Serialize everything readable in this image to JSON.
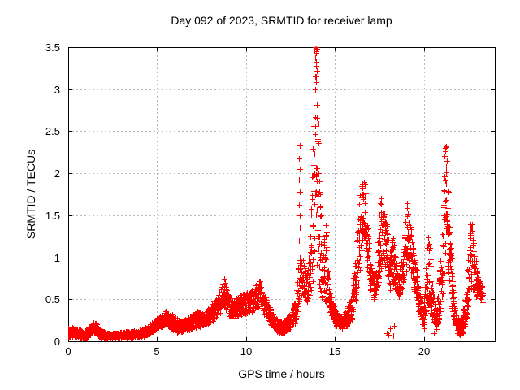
{
  "chart_data": {
    "type": "scatter",
    "title": "Day 092 of 2023, SRMTID for receiver lamp",
    "xlabel": "GPS time / hours",
    "ylabel": "SRMTID / TECUs",
    "xlim": [
      0,
      24
    ],
    "ylim": [
      0,
      3.5
    ],
    "xticks": [
      0,
      5,
      10,
      15,
      20
    ],
    "yticks": [
      0,
      0.5,
      1,
      1.5,
      2,
      2.5,
      3,
      3.5
    ],
    "grid": true,
    "legend": "none",
    "marker": "plus",
    "colors": {
      "points": "#ff0000",
      "grid": "#b9b9b9",
      "frame": "#000000",
      "text": "#000000",
      "background": "#ffffff"
    },
    "envelope": [
      [
        0.0,
        0.04,
        0.17
      ],
      [
        0.3,
        0.05,
        0.16
      ],
      [
        0.6,
        0.04,
        0.14
      ],
      [
        0.9,
        0.03,
        0.12
      ],
      [
        1.2,
        0.06,
        0.18
      ],
      [
        1.4,
        0.1,
        0.24
      ],
      [
        1.6,
        0.08,
        0.2
      ],
      [
        1.8,
        0.04,
        0.14
      ],
      [
        2.1,
        0.03,
        0.11
      ],
      [
        2.4,
        0.03,
        0.1
      ],
      [
        2.7,
        0.03,
        0.1
      ],
      [
        3.0,
        0.04,
        0.11
      ],
      [
        3.3,
        0.04,
        0.12
      ],
      [
        3.6,
        0.04,
        0.12
      ],
      [
        3.9,
        0.05,
        0.13
      ],
      [
        4.2,
        0.06,
        0.15
      ],
      [
        4.5,
        0.08,
        0.18
      ],
      [
        4.8,
        0.12,
        0.24
      ],
      [
        5.0,
        0.14,
        0.28
      ],
      [
        5.3,
        0.16,
        0.33
      ],
      [
        5.5,
        0.18,
        0.38
      ],
      [
        5.8,
        0.14,
        0.33
      ],
      [
        6.1,
        0.11,
        0.28
      ],
      [
        6.4,
        0.1,
        0.24
      ],
      [
        6.7,
        0.12,
        0.27
      ],
      [
        7.0,
        0.15,
        0.32
      ],
      [
        7.3,
        0.18,
        0.37
      ],
      [
        7.6,
        0.16,
        0.33
      ],
      [
        7.9,
        0.2,
        0.4
      ],
      [
        8.2,
        0.26,
        0.5
      ],
      [
        8.5,
        0.32,
        0.57
      ],
      [
        8.75,
        0.38,
        0.74
      ],
      [
        8.9,
        0.34,
        0.62
      ],
      [
        9.1,
        0.28,
        0.52
      ],
      [
        9.4,
        0.28,
        0.5
      ],
      [
        9.7,
        0.3,
        0.56
      ],
      [
        10.0,
        0.32,
        0.58
      ],
      [
        10.3,
        0.34,
        0.6
      ],
      [
        10.6,
        0.4,
        0.68
      ],
      [
        10.8,
        0.42,
        0.73
      ],
      [
        11.0,
        0.34,
        0.58
      ],
      [
        11.3,
        0.22,
        0.42
      ],
      [
        11.6,
        0.13,
        0.3
      ],
      [
        11.9,
        0.09,
        0.24
      ],
      [
        12.2,
        0.1,
        0.26
      ],
      [
        12.5,
        0.14,
        0.33
      ],
      [
        12.8,
        0.22,
        0.5
      ],
      [
        13.0,
        0.5,
        1.05
      ],
      [
        13.2,
        0.55,
        1.0
      ],
      [
        13.4,
        0.45,
        0.78
      ],
      [
        13.6,
        0.55,
        1.1
      ],
      [
        13.75,
        0.65,
        2.2
      ],
      [
        13.9,
        0.8,
        3.5
      ],
      [
        14.0,
        0.85,
        3.5
      ],
      [
        14.1,
        0.65,
        2.0
      ],
      [
        14.25,
        0.5,
        1.0
      ],
      [
        14.5,
        0.45,
        1.42
      ],
      [
        14.7,
        0.35,
        0.62
      ],
      [
        14.9,
        0.25,
        0.45
      ],
      [
        15.1,
        0.17,
        0.33
      ],
      [
        15.4,
        0.15,
        0.3
      ],
      [
        15.7,
        0.18,
        0.38
      ],
      [
        16.0,
        0.28,
        0.65
      ],
      [
        16.2,
        0.45,
        1.05
      ],
      [
        16.4,
        0.75,
        1.75
      ],
      [
        16.55,
        1.15,
        1.97
      ],
      [
        16.7,
        1.25,
        1.9
      ],
      [
        16.85,
        0.85,
        1.45
      ],
      [
        17.0,
        0.55,
        0.9
      ],
      [
        17.2,
        0.5,
        0.78
      ],
      [
        17.4,
        0.6,
        1.1
      ],
      [
        17.6,
        0.85,
        1.78
      ],
      [
        17.75,
        0.95,
        1.55
      ],
      [
        17.9,
        0.75,
        1.4
      ],
      [
        18.1,
        0.6,
        1.1
      ],
      [
        18.25,
        0.7,
        1.3
      ],
      [
        18.4,
        0.6,
        1.05
      ],
      [
        18.6,
        0.52,
        0.8
      ],
      [
        18.85,
        0.65,
        1.1
      ],
      [
        19.05,
        0.85,
        1.7
      ],
      [
        19.2,
        0.8,
        1.55
      ],
      [
        19.4,
        0.6,
        1.1
      ],
      [
        19.6,
        0.5,
        0.85
      ],
      [
        19.8,
        0.25,
        0.55
      ],
      [
        20.0,
        0.15,
        0.4
      ],
      [
        20.15,
        0.35,
        1.0
      ],
      [
        20.3,
        0.4,
        1.35
      ],
      [
        20.5,
        0.2,
        0.65
      ],
      [
        20.7,
        0.1,
        0.38
      ],
      [
        20.9,
        0.3,
        0.85
      ],
      [
        21.1,
        0.6,
        1.8
      ],
      [
        21.25,
        1.0,
        2.32
      ],
      [
        21.4,
        0.75,
        1.7
      ],
      [
        21.6,
        0.35,
        0.85
      ],
      [
        21.8,
        0.12,
        0.38
      ],
      [
        22.0,
        0.06,
        0.24
      ],
      [
        22.2,
        0.1,
        0.35
      ],
      [
        22.45,
        0.28,
        0.85
      ],
      [
        22.65,
        0.6,
        1.5
      ],
      [
        22.8,
        0.55,
        1.2
      ],
      [
        23.0,
        0.5,
        0.85
      ],
      [
        23.15,
        0.5,
        0.72
      ],
      [
        23.3,
        0.45,
        0.65
      ]
    ],
    "extra_points": [
      [
        13.0,
        1.2
      ],
      [
        13.01,
        1.35
      ],
      [
        13.02,
        1.5
      ],
      [
        13.0,
        1.62
      ],
      [
        13.03,
        1.78
      ],
      [
        13.0,
        1.92
      ],
      [
        13.02,
        2.05
      ],
      [
        13.0,
        2.18
      ],
      [
        13.01,
        2.33
      ],
      [
        13.87,
        3.47
      ],
      [
        13.9,
        3.5
      ],
      [
        13.93,
        3.43
      ],
      [
        13.95,
        3.5
      ],
      [
        13.89,
        3.37
      ],
      [
        13.96,
        3.45
      ],
      [
        13.98,
        3.48
      ],
      [
        13.92,
        3.33
      ],
      [
        13.94,
        3.28
      ],
      [
        13.97,
        3.22
      ],
      [
        13.9,
        3.15
      ],
      [
        13.93,
        3.08
      ],
      [
        13.88,
        3.0
      ],
      [
        14.12,
        1.9
      ],
      [
        14.15,
        1.75
      ],
      [
        14.18,
        1.6
      ],
      [
        14.2,
        1.5
      ],
      [
        14.5,
        1.38
      ],
      [
        14.52,
        1.3
      ],
      [
        14.48,
        1.25
      ],
      [
        8.78,
        0.74
      ],
      [
        8.8,
        0.7
      ],
      [
        8.76,
        0.66
      ],
      [
        21.2,
        2.3
      ],
      [
        21.23,
        2.26
      ],
      [
        21.26,
        2.32
      ],
      [
        21.18,
        2.2
      ],
      [
        21.28,
        2.15
      ],
      [
        21.24,
        2.08
      ],
      [
        17.9,
        0.1
      ],
      [
        18.0,
        0.08
      ],
      [
        18.12,
        0.15
      ],
      [
        18.3,
        0.07
      ],
      [
        18.35,
        0.18
      ],
      [
        17.95,
        0.22
      ],
      [
        22.3,
        0.2
      ],
      [
        22.35,
        0.3
      ],
      [
        20.55,
        0.1
      ],
      [
        1.05,
        0.02
      ]
    ]
  }
}
